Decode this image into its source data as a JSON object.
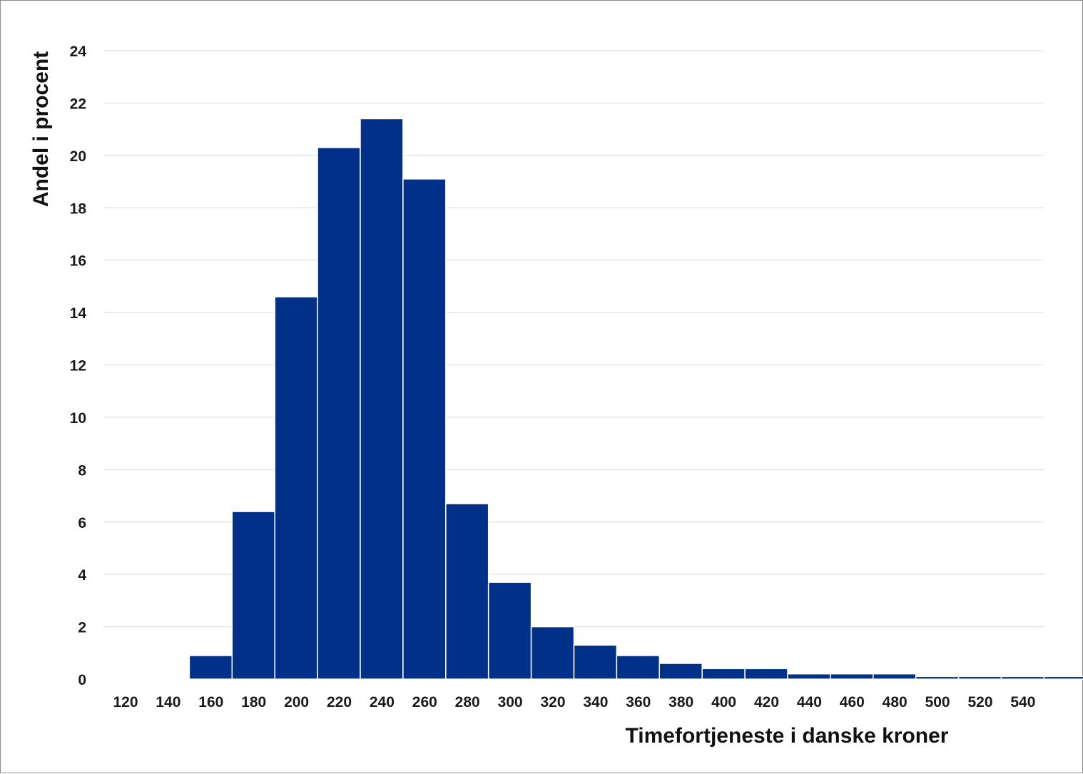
{
  "chart_data": {
    "type": "bar",
    "xlabel": "Timefortjeneste i danske kroner",
    "ylabel": "Andel i procent",
    "ylim": [
      0,
      24
    ],
    "yticks": [
      "0",
      "2",
      "4",
      "6",
      "8",
      "10",
      "12",
      "14",
      "16",
      "18",
      "20",
      "22",
      "24"
    ],
    "categories": [
      "120",
      "140",
      "160",
      "180",
      "200",
      "220",
      "240",
      "260",
      "280",
      "300",
      "320",
      "340",
      "360",
      "380",
      "400",
      "420",
      "440",
      "460",
      "480",
      "500",
      "520",
      "540"
    ],
    "values": [
      0,
      0.9,
      6.4,
      14.6,
      20.3,
      21.4,
      19.1,
      6.7,
      3.7,
      2.0,
      1.3,
      0.9,
      0.6,
      0.4,
      0.4,
      0.2,
      0.2,
      0.2,
      0.1,
      0.1,
      0.1,
      0.1
    ],
    "bar_color": "#003087",
    "grid": true,
    "legend": "none"
  }
}
